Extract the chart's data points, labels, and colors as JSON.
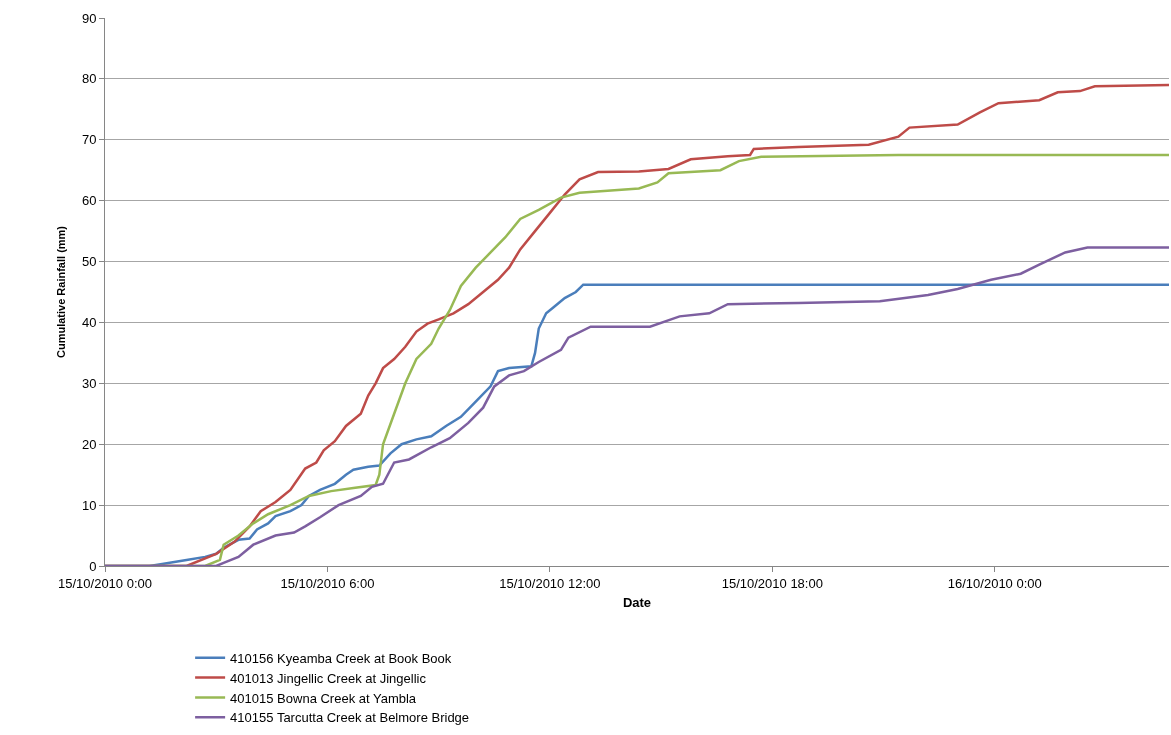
{
  "chart_data": {
    "type": "line",
    "xlabel": "Date",
    "ylabel": "Cumulative Rainfall (mm)",
    "xlim": [
      "2010-10-15T00:00",
      "2010-10-16T04:42"
    ],
    "xticks": [
      {
        "value": "2010-10-15T00:00",
        "label": "15/10/2010 0:00"
      },
      {
        "value": "2010-10-15T06:00",
        "label": "15/10/2010 6:00"
      },
      {
        "value": "2010-10-15T12:00",
        "label": "15/10/2010 12:00"
      },
      {
        "value": "2010-10-15T18:00",
        "label": "15/10/2010 18:00"
      },
      {
        "value": "2010-10-16T00:00",
        "label": "16/10/2010 0:00"
      }
    ],
    "ylim": [
      0,
      90
    ],
    "yticks": [
      0,
      10,
      20,
      30,
      40,
      50,
      60,
      70,
      80,
      90
    ],
    "grid": "y",
    "legend": "bottom",
    "marker": "none",
    "line_style": "solid",
    "series": [
      {
        "name": "410156 Kyeamba Creek at Book Book",
        "color": "#4a7ebb",
        "x": [
          "2010-10-15T00:00",
          "2010-10-15T01:12",
          "2010-10-15T01:30",
          "2010-10-15T02:12",
          "2010-10-15T02:42",
          "2010-10-15T03:00",
          "2010-10-15T03:12",
          "2010-10-15T03:36",
          "2010-10-15T03:54",
          "2010-10-15T04:06",
          "2010-10-15T04:24",
          "2010-10-15T04:36",
          "2010-10-15T05:00",
          "2010-10-15T05:18",
          "2010-10-15T05:30",
          "2010-10-15T05:48",
          "2010-10-15T06:12",
          "2010-10-15T06:30",
          "2010-10-15T06:42",
          "2010-10-15T07:06",
          "2010-10-15T07:24",
          "2010-10-15T07:42",
          "2010-10-15T08:00",
          "2010-10-15T08:24",
          "2010-10-15T08:48",
          "2010-10-15T09:12",
          "2010-10-15T09:36",
          "2010-10-15T10:00",
          "2010-10-15T10:24",
          "2010-10-15T10:36",
          "2010-10-15T10:54",
          "2010-10-15T11:30",
          "2010-10-15T11:36",
          "2010-10-15T11:42",
          "2010-10-15T11:54",
          "2010-10-15T12:06",
          "2010-10-15T12:24",
          "2010-10-15T12:42",
          "2010-10-15T12:54",
          "2010-10-16T04:42"
        ],
        "values": [
          0,
          0,
          0.3,
          1,
          1.5,
          2,
          3,
          4.3,
          4.5,
          6,
          7,
          8.2,
          9,
          10,
          11.5,
          12.5,
          13.5,
          15,
          15.8,
          16.3,
          16.5,
          18.5,
          20,
          20.8,
          21.3,
          23,
          24.5,
          27,
          29.5,
          32,
          32.5,
          32.8,
          35,
          39,
          41.5,
          42.5,
          44,
          45,
          46.2,
          46.2
        ]
      },
      {
        "name": "401013 Jingellic Creek at Jingellic",
        "color": "#be4b48",
        "x": [
          "2010-10-15T00:00",
          "2010-10-15T02:12",
          "2010-10-15T03:00",
          "2010-10-15T03:30",
          "2010-10-15T03:54",
          "2010-10-15T04:12",
          "2010-10-15T04:36",
          "2010-10-15T05:00",
          "2010-10-15T05:24",
          "2010-10-15T05:42",
          "2010-10-15T05:54",
          "2010-10-15T06:12",
          "2010-10-15T06:30",
          "2010-10-15T06:54",
          "2010-10-15T07:06",
          "2010-10-15T07:18",
          "2010-10-15T07:30",
          "2010-10-15T07:48",
          "2010-10-15T08:06",
          "2010-10-15T08:24",
          "2010-10-15T08:42",
          "2010-10-15T09:00",
          "2010-10-15T09:24",
          "2010-10-15T09:48",
          "2010-10-15T10:12",
          "2010-10-15T10:36",
          "2010-10-15T10:54",
          "2010-10-15T11:12",
          "2010-10-15T11:36",
          "2010-10-15T12:00",
          "2010-10-15T12:24",
          "2010-10-15T12:48",
          "2010-10-15T13:18",
          "2010-10-15T14:24",
          "2010-10-15T15:12",
          "2010-10-15T15:48",
          "2010-10-15T16:48",
          "2010-10-15T17:24",
          "2010-10-15T17:30",
          "2010-10-15T18:42",
          "2010-10-15T20:36",
          "2010-10-15T21:24",
          "2010-10-15T21:42",
          "2010-10-15T23:00",
          "2010-10-15T23:36",
          "2010-10-16T00:06",
          "2010-10-16T01:12",
          "2010-10-16T01:42",
          "2010-10-16T02:18",
          "2010-10-16T02:42",
          "2010-10-16T04:42"
        ],
        "values": [
          0,
          0,
          2,
          4,
          6.5,
          9,
          10.5,
          12.5,
          16,
          17,
          19,
          20.5,
          23,
          25,
          28,
          30,
          32.5,
          34,
          36,
          38.5,
          39.8,
          40.5,
          41.5,
          43,
          45,
          47,
          49,
          52,
          55,
          58,
          61,
          63.5,
          64.7,
          64.8,
          65.2,
          66.8,
          67.3,
          67.5,
          68.5,
          68.8,
          69.2,
          70.5,
          72,
          72.5,
          74.5,
          76,
          76.5,
          77.8,
          78,
          78.8,
          79
        ]
      },
      {
        "name": "401015 Bowna Creek at Yambla",
        "color": "#98b954",
        "x": [
          "2010-10-15T00:00",
          "2010-10-15T02:42",
          "2010-10-15T03:06",
          "2010-10-15T03:12",
          "2010-10-15T03:36",
          "2010-10-15T04:00",
          "2010-10-15T04:24",
          "2010-10-15T05:00",
          "2010-10-15T05:30",
          "2010-10-15T06:06",
          "2010-10-15T06:42",
          "2010-10-15T07:18",
          "2010-10-15T07:24",
          "2010-10-15T07:30",
          "2010-10-15T07:48",
          "2010-10-15T08:06",
          "2010-10-15T08:24",
          "2010-10-15T08:48",
          "2010-10-15T09:00",
          "2010-10-15T09:18",
          "2010-10-15T09:36",
          "2010-10-15T10:00",
          "2010-10-15T10:24",
          "2010-10-15T10:48",
          "2010-10-15T11:12",
          "2010-10-15T11:42",
          "2010-10-15T12:18",
          "2010-10-15T12:48",
          "2010-10-15T14:24",
          "2010-10-15T14:54",
          "2010-10-15T15:12",
          "2010-10-15T16:36",
          "2010-10-15T17:06",
          "2010-10-15T17:42",
          "2010-10-15T21:24",
          "2010-10-16T04:42"
        ],
        "values": [
          0,
          0,
          1,
          3.5,
          5,
          7,
          8.5,
          10,
          11.5,
          12.3,
          12.8,
          13.3,
          15,
          20,
          25,
          30,
          34,
          36.5,
          39,
          42,
          46,
          49,
          51.5,
          54,
          57,
          58.5,
          60.5,
          61.3,
          62,
          63,
          64.5,
          65,
          66.5,
          67.2,
          67.5,
          67.5
        ]
      },
      {
        "name": "410155 Tarcutta Creek at Belmore Bridge",
        "color": "#7d5fa0",
        "x": [
          "2010-10-15T00:00",
          "2010-10-15T03:00",
          "2010-10-15T03:12",
          "2010-10-15T03:36",
          "2010-10-15T04:00",
          "2010-10-15T04:36",
          "2010-10-15T05:06",
          "2010-10-15T05:24",
          "2010-10-15T05:48",
          "2010-10-15T06:18",
          "2010-10-15T06:54",
          "2010-10-15T07:12",
          "2010-10-15T07:30",
          "2010-10-15T07:48",
          "2010-10-15T08:12",
          "2010-10-15T08:48",
          "2010-10-15T09:18",
          "2010-10-15T09:48",
          "2010-10-15T10:12",
          "2010-10-15T10:30",
          "2010-10-15T10:54",
          "2010-10-15T11:18",
          "2010-10-15T11:42",
          "2010-10-15T12:18",
          "2010-10-15T12:30",
          "2010-10-15T13:06",
          "2010-10-15T14:42",
          "2010-10-15T15:30",
          "2010-10-15T16:18",
          "2010-10-15T16:48",
          "2010-10-15T18:42",
          "2010-10-15T20:54",
          "2010-10-15T22:12",
          "2010-10-15T23:00",
          "2010-10-15T23:54",
          "2010-10-16T00:42",
          "2010-10-16T01:12",
          "2010-10-16T01:54",
          "2010-10-16T02:30",
          "2010-10-16T04:42"
        ],
        "values": [
          0,
          0,
          0.5,
          1.5,
          3.5,
          5,
          5.5,
          6.5,
          8,
          10,
          11.5,
          13,
          13.5,
          17,
          17.5,
          19.5,
          21,
          23.5,
          26,
          29.5,
          31.3,
          32,
          33.5,
          35.5,
          37.5,
          39.3,
          39.3,
          41,
          41.5,
          43,
          43.2,
          43.5,
          44.5,
          45.5,
          47,
          48,
          49.5,
          51.5,
          52.3,
          52.3
        ]
      }
    ]
  }
}
